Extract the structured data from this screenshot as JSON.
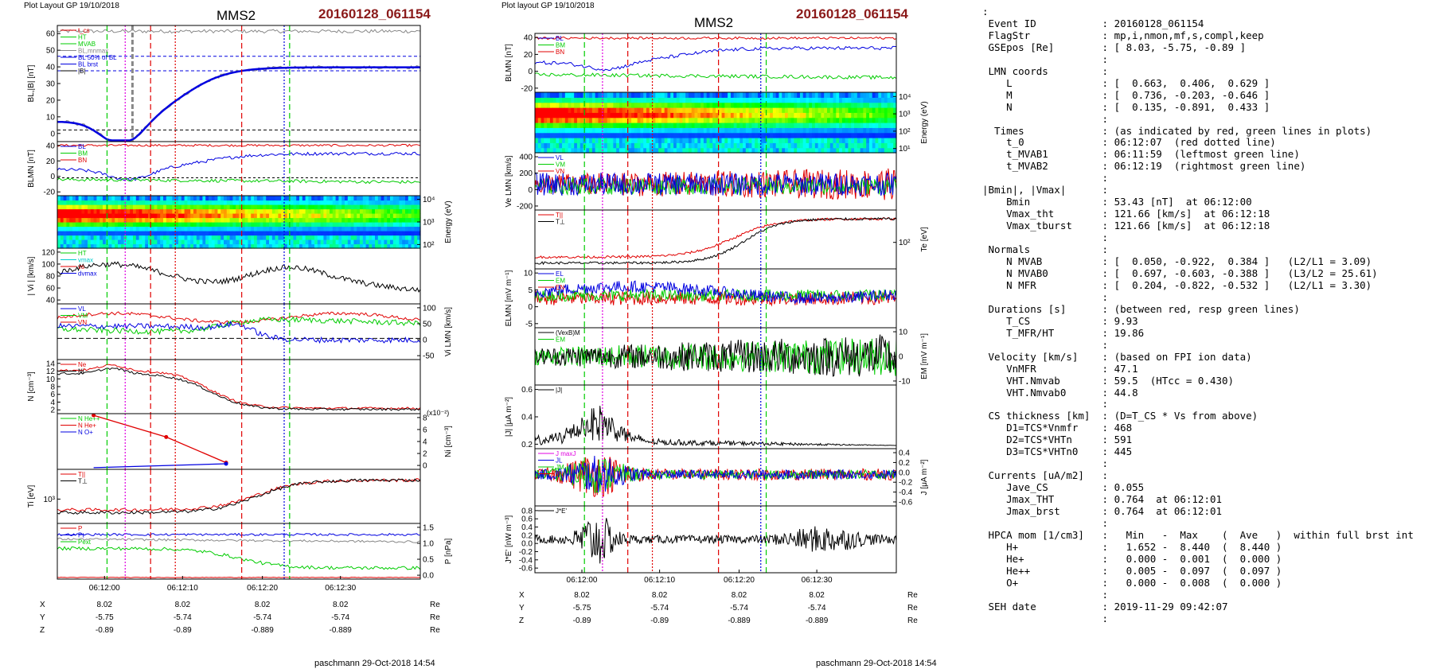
{
  "header": {
    "left_plot_label": "Plot Layout GP 19/10/2018",
    "right_plot_label": "Plot layout GP 19/10/2018",
    "spacecraft": "MMS2",
    "event": "20160128_061154",
    "footer": "paschmann 29-Oct-2018 14:54"
  },
  "colors": {
    "red": "#e00000",
    "green": "#00cc00",
    "blue": "#0000e0",
    "magenta": "#e000e0",
    "grey": "#888888",
    "black": "#000000",
    "date": "#8b1a1a"
  },
  "chart_data": [
    {
      "type": "line",
      "panel_set": "left",
      "time_ticks": [
        "06:12:00",
        "06:12:10",
        "06:12:20",
        "06:12:30"
      ],
      "position_table": {
        "rows": [
          {
            "label": "X",
            "values": [
              "8.02",
              "8.02",
              "8.02",
              "8.02"
            ],
            "unit": "Re"
          },
          {
            "label": "Y",
            "values": [
              "-5.75",
              "-5.74",
              "-5.74",
              "-5.74"
            ],
            "unit": "Re"
          },
          {
            "label": "Z",
            "values": [
              "-0.89",
              "-0.89",
              "-0.889",
              "-0.889"
            ],
            "unit": "Re"
          }
        ]
      },
      "panels": [
        {
          "ylabel": "BL,|B| [nT]",
          "yticks": [
            "60",
            "50",
            "40",
            "30",
            "20",
            "10",
            "0"
          ],
          "legend": [
            "t_cs",
            "HT",
            "MVAB",
            "BL,mnmax",
            "BL 50% of BL",
            "BL brst",
            "|B|"
          ],
          "legend_colors": [
            "#e00000",
            "#00cc00",
            "#00cc00",
            "#888888",
            "#0000e0",
            "#0000e0",
            "#000000"
          ]
        },
        {
          "ylabel": "BLMN [nT]",
          "yticks": [
            "40",
            "20",
            "0",
            "-20"
          ],
          "legend": [
            "BL",
            "BM",
            "BN"
          ],
          "legend_colors": [
            "#0000e0",
            "#00cc00",
            "#e00000"
          ]
        },
        {
          "ylabel_right": "Energy (eV)",
          "yticks_right": [
            "10⁴",
            "10³",
            "10²"
          ],
          "type": "heatmap"
        },
        {
          "ylabel": "| Vi | [km/s]",
          "yticks": [
            "120",
            "100",
            "80",
            "60",
            "40"
          ],
          "legend": [
            "HT",
            "vmax",
            "vs",
            "dvmax"
          ],
          "legend_colors": [
            "#00cc00",
            "#00cccc",
            "#e00000",
            "#0000e0"
          ]
        },
        {
          "ylabel_right": "Vi LMN [km/s]",
          "yticks_right": [
            "100",
            "50",
            "0",
            "-50"
          ],
          "legend": [
            "VL",
            "VM",
            "VN"
          ],
          "legend_colors": [
            "#0000e0",
            "#00cc00",
            "#e00000"
          ]
        },
        {
          "ylabel": "N [cm⁻³]",
          "yticks": [
            "14",
            "12",
            "10",
            "8",
            "6",
            "4",
            "2"
          ],
          "legend": [
            "Ne",
            "Ni"
          ],
          "legend_colors": [
            "#e00000",
            "#000000"
          ]
        },
        {
          "ylabel_right": "Ni [cm⁻³]",
          "scale_note": "(x10⁻²)",
          "yticks_right": [
            "8",
            "6",
            "4",
            "2",
            "0"
          ],
          "legend": [
            "N He++",
            "N He+",
            "N O+"
          ],
          "legend_colors": [
            "#00cc00",
            "#e00000",
            "#0000e0"
          ]
        },
        {
          "ylabel": "Ti [eV]",
          "yticks": [
            "10³"
          ],
          "legend": [
            "T||",
            "T⊥"
          ],
          "legend_colors": [
            "#e00000",
            "#000000"
          ]
        },
        {
          "ylabel_right": "P [nPa]",
          "yticks_right": [
            "1.5",
            "1.0",
            "0.5",
            "0.0"
          ],
          "legend": [
            "P",
            "Pt",
            "Pext"
          ],
          "legend_colors": [
            "#e00000",
            "#0000e0",
            "#00cc00"
          ]
        }
      ]
    },
    {
      "type": "line",
      "panel_set": "right",
      "time_ticks": [
        "06:12:00",
        "06:12:10",
        "06:12:20",
        "06:12:30"
      ],
      "position_table": {
        "rows": [
          {
            "label": "X",
            "values": [
              "8.02",
              "8.02",
              "8.02",
              "8.02"
            ],
            "unit": "Re"
          },
          {
            "label": "Y",
            "values": [
              "-5.75",
              "-5.74",
              "-5.74",
              "-5.74"
            ],
            "unit": "Re"
          },
          {
            "label": "Z",
            "values": [
              "-0.89",
              "-0.89",
              "-0.889",
              "-0.889"
            ],
            "unit": "Re"
          }
        ]
      },
      "panels": [
        {
          "ylabel": "BLMN [nT]",
          "yticks": [
            "40",
            "20",
            "0",
            "-20"
          ],
          "legend": [
            "BL",
            "BM",
            "BN"
          ],
          "legend_colors": [
            "#0000e0",
            "#00cc00",
            "#e00000"
          ]
        },
        {
          "ylabel_right": "Energy (eV)",
          "yticks_right": [
            "10⁴",
            "10³",
            "10²",
            "10¹"
          ],
          "type": "heatmap"
        },
        {
          "ylabel": "Ve LMN [km/s]",
          "yticks": [
            "400",
            "200",
            "0",
            "-200"
          ],
          "legend": [
            "VL",
            "VM",
            "VN"
          ],
          "legend_colors": [
            "#0000e0",
            "#00cc00",
            "#e00000"
          ]
        },
        {
          "ylabel_right": "Te [eV]",
          "yticks_right": [
            "10²"
          ],
          "legend": [
            "T||",
            "T⊥"
          ],
          "legend_colors": [
            "#e00000",
            "#000000"
          ]
        },
        {
          "ylabel": "ELMN [mV m⁻¹]",
          "yticks": [
            "10",
            "5",
            "0",
            "-5"
          ],
          "legend": [
            "EL",
            "EM",
            "EN"
          ],
          "legend_colors": [
            "#0000e0",
            "#00cc00",
            "#e00000"
          ]
        },
        {
          "ylabel_right": "EM [mV m⁻¹]",
          "yticks_right": [
            "10",
            "0",
            "-10"
          ],
          "legend": [
            "(VexB)M",
            "EM"
          ],
          "legend_colors": [
            "#000000",
            "#00cc00"
          ]
        },
        {
          "ylabel": "|J| [μA m⁻²]",
          "yticks": [
            "0.6",
            "0.4",
            "0.2"
          ],
          "legend": [
            "|J|"
          ],
          "legend_colors": [
            "#000000"
          ]
        },
        {
          "ylabel_right": "J [μA m⁻²]",
          "yticks_right": [
            "0.4",
            "0.2",
            "0.0",
            "-0.2",
            "-0.4",
            "-0.6"
          ],
          "legend": [
            "J maxJ",
            "JL",
            "JM",
            "JN"
          ],
          "legend_colors": [
            "#e000e0",
            "#0000e0",
            "#00cc00",
            "#e00000"
          ]
        },
        {
          "ylabel": "J*E' [nW m⁻³]",
          "yticks": [
            "0.8",
            "0.6",
            "0.4",
            "0.2",
            "0.0",
            "-0.2",
            "-0.4",
            "-0.6"
          ],
          "legend": [
            "J*E'"
          ],
          "legend_colors": [
            "#000000"
          ]
        }
      ]
    }
  ],
  "info_lines": [
    ":",
    " Event ID           : 20160128_061154",
    " FlagStr            : mp,i,nmon,mf,s,compl,keep",
    " GSEpos [Re]        : [ 8.03, -5.75, -0.89 ]",
    "                    :",
    " LMN coords         :",
    "    L               : [  0.663,  0.406,  0.629 ]",
    "    M               : [  0.736, -0.203, -0.646 ]",
    "    N               : [  0.135, -0.891,  0.433 ]",
    "                    :",
    "  Times             : (as indicated by red, green lines in plots)",
    "    t_0             : 06:12:07  (red dotted line)",
    "    t_MVAB1         : 06:11:59  (leftmost green line)",
    "    t_MVAB2         : 06:12:19  (rightmost green line)",
    "                    :",
    "|Bmin|, |Vmax|      :",
    "    Bmin            : 53.43 [nT]  at 06:12:00",
    "    Vmax_tht        : 121.66 [km/s]  at 06:12:18",
    "    Vmax_tburst     : 121.66 [km/s]  at 06:12:18",
    "                    :",
    " Normals            :",
    "    N MVAB          : [  0.050, -0.922,  0.384 ]   (L2/L1 = 3.09)",
    "    N MVAB0         : [  0.697, -0.603, -0.388 ]   (L3/L2 = 25.61)",
    "    N MFR           : [  0.204, -0.822, -0.532 ]   (L2/L1 = 3.30)",
    "                    :",
    " Durations [s]      : (between red, resp green lines)",
    "    T_CS            : 9.93",
    "    T_MFR/HT        : 19.86",
    "                    :",
    " Velocity [km/s]    : (based on FPI ion data)",
    "    VnMFR           : 47.1",
    "    VHT.Nmvab       : 59.5  (HTcc = 0.430)",
    "    VHT.Nmvab0      : 44.8",
    "                    :",
    " CS thickness [km]  : (D=T_CS * Vs from above)",
    "    D1=TCS*Vnmfr    : 468",
    "    D2=TCS*VHTn     : 591",
    "    D3=TCS*VHTn0    : 445",
    "                    :",
    " Currents [uA/m2]   :",
    "    Jave_CS         : 0.055",
    "    Jmax_THT        : 0.764  at 06:12:01",
    "    Jmax_brst       : 0.764  at 06:12:01",
    "                    :",
    " HPCA mom [1/cm3]   :   Min   -  Max    (  Ave   )  within full brst int",
    "    H+              :   1.652 -  8.440  (  8.440 )",
    "    He+             :   0.000 -  0.001  (  0.000 )",
    "    He++            :   0.005 -  0.097  (  0.097 )",
    "    O+              :   0.000 -  0.008  (  0.000 )",
    "                    :",
    " SEH date           : 2019-11-29 09:42:07",
    "                    :"
  ]
}
